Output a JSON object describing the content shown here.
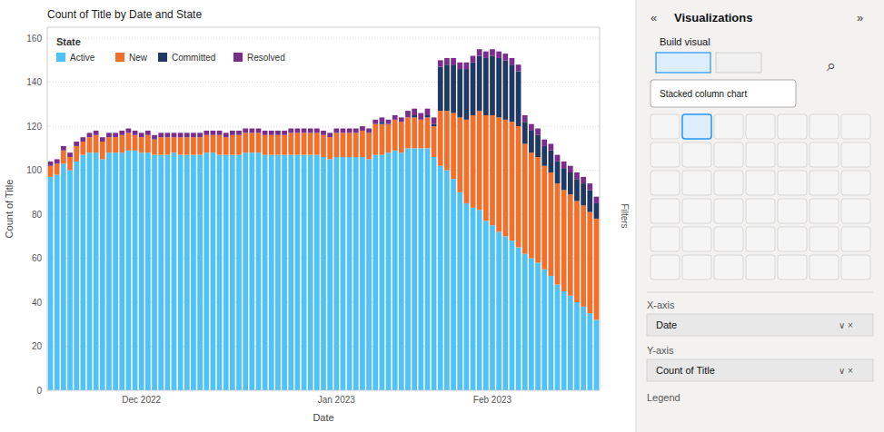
{
  "chart_data": {
    "type": "bar",
    "stacked": true,
    "title": "Count of Title by Date and State",
    "xlabel": "Date",
    "ylabel": "Count of Title",
    "legend_title": "State",
    "legend": "upper left",
    "grid": true,
    "ylim": [
      0,
      165
    ],
    "yticks": [
      0,
      20,
      40,
      60,
      80,
      100,
      120,
      140,
      160
    ],
    "categories": [
      null,
      null,
      null,
      null,
      null,
      null,
      null,
      null,
      null,
      null,
      null,
      null,
      null,
      null,
      "Dec 2022",
      null,
      null,
      null,
      null,
      null,
      null,
      null,
      null,
      null,
      null,
      null,
      null,
      null,
      null,
      null,
      null,
      null,
      null,
      null,
      null,
      null,
      null,
      null,
      null,
      null,
      null,
      null,
      null,
      null,
      "Jan 2023",
      null,
      null,
      null,
      null,
      null,
      null,
      null,
      null,
      null,
      null,
      null,
      null,
      null,
      null,
      null,
      null,
      null,
      null,
      null,
      null,
      null,
      null,
      null,
      "Feb 2023",
      null,
      null,
      null,
      null,
      null,
      null,
      null,
      null,
      null,
      null,
      null,
      null,
      null,
      null,
      null,
      null
    ],
    "series": [
      {
        "name": "Active",
        "color": "#4fc3f7",
        "values": [
          97,
          98,
          103,
          100,
          104,
          107,
          108,
          108,
          105,
          108,
          108,
          108,
          109,
          109,
          108,
          108,
          107,
          107,
          107,
          108,
          107,
          107,
          107,
          107,
          108,
          108,
          107,
          107,
          107,
          107,
          108,
          108,
          108,
          107,
          107,
          107,
          107,
          107,
          107,
          107,
          107,
          107,
          106,
          105,
          106,
          106,
          106,
          106,
          106,
          105,
          107,
          107,
          108,
          109,
          108,
          110,
          110,
          110,
          110,
          106,
          102,
          100,
          96,
          90,
          85,
          83,
          82,
          77,
          75,
          72,
          70,
          68,
          65,
          62,
          60,
          58,
          55,
          52,
          48,
          45,
          43,
          40,
          38,
          35,
          32
        ]
      },
      {
        "name": "New",
        "color": "#f4702a",
        "values": [
          5,
          5,
          6,
          6,
          7,
          6,
          7,
          8,
          8,
          7,
          7,
          8,
          8,
          7,
          7,
          8,
          7,
          8,
          8,
          7,
          8,
          8,
          8,
          8,
          8,
          8,
          9,
          8,
          9,
          9,
          9,
          9,
          9,
          9,
          9,
          9,
          9,
          10,
          10,
          10,
          10,
          10,
          10,
          10,
          11,
          11,
          11,
          11,
          12,
          12,
          14,
          14,
          13,
          14,
          14,
          14,
          14,
          13,
          14,
          14,
          25,
          27,
          30,
          34,
          38,
          42,
          45,
          48,
          50,
          52,
          53,
          54,
          55,
          50,
          48,
          48,
          47,
          47,
          46,
          46,
          46,
          46,
          46,
          46,
          46
        ]
      },
      {
        "name": "Committed",
        "color": "#1f3864",
        "values": [
          0,
          0,
          0,
          0,
          0,
          0,
          0,
          0,
          0,
          0,
          0,
          0,
          0,
          0,
          0,
          0,
          0,
          0,
          0,
          0,
          0,
          0,
          0,
          0,
          0,
          0,
          0,
          0,
          0,
          0,
          0,
          0,
          0,
          0,
          0,
          0,
          0,
          0,
          0,
          0,
          0,
          0,
          0,
          0,
          0,
          0,
          0,
          0,
          0,
          0,
          0,
          1,
          0,
          0,
          0,
          0,
          1,
          0,
          1,
          1,
          20,
          21,
          22,
          22,
          23,
          24,
          25,
          26,
          27,
          27,
          27,
          26,
          25,
          10,
          10,
          10,
          9,
          10,
          10,
          10,
          10,
          10,
          10,
          10,
          7
        ]
      },
      {
        "name": "Resolved",
        "color": "#7b2d8b",
        "values": [
          2,
          2,
          2,
          2,
          2,
          2,
          2,
          2,
          2,
          2,
          2,
          2,
          2,
          2,
          2,
          2,
          2,
          2,
          2,
          2,
          2,
          2,
          2,
          2,
          2,
          2,
          2,
          2,
          2,
          2,
          2,
          2,
          2,
          2,
          2,
          2,
          2,
          2,
          2,
          2,
          2,
          2,
          2,
          2,
          2,
          2,
          2,
          2,
          2,
          2,
          2,
          2,
          2,
          2,
          2,
          3,
          3,
          3,
          3,
          3,
          3,
          3,
          3,
          3,
          3,
          3,
          3,
          3,
          3,
          3,
          3,
          3,
          3,
          3,
          3,
          3,
          3,
          3,
          3,
          3,
          3,
          3,
          3,
          3,
          3
        ]
      }
    ],
    "annotations": [
      "«",
      "Visualizations",
      "»",
      "Build visual",
      "Stacked column chart",
      "⌕",
      "X-axis",
      "Date",
      "∨  ×",
      "Y-axis",
      "Count of Title",
      "∨  ×",
      "Legend",
      "Filters"
    ]
  }
}
